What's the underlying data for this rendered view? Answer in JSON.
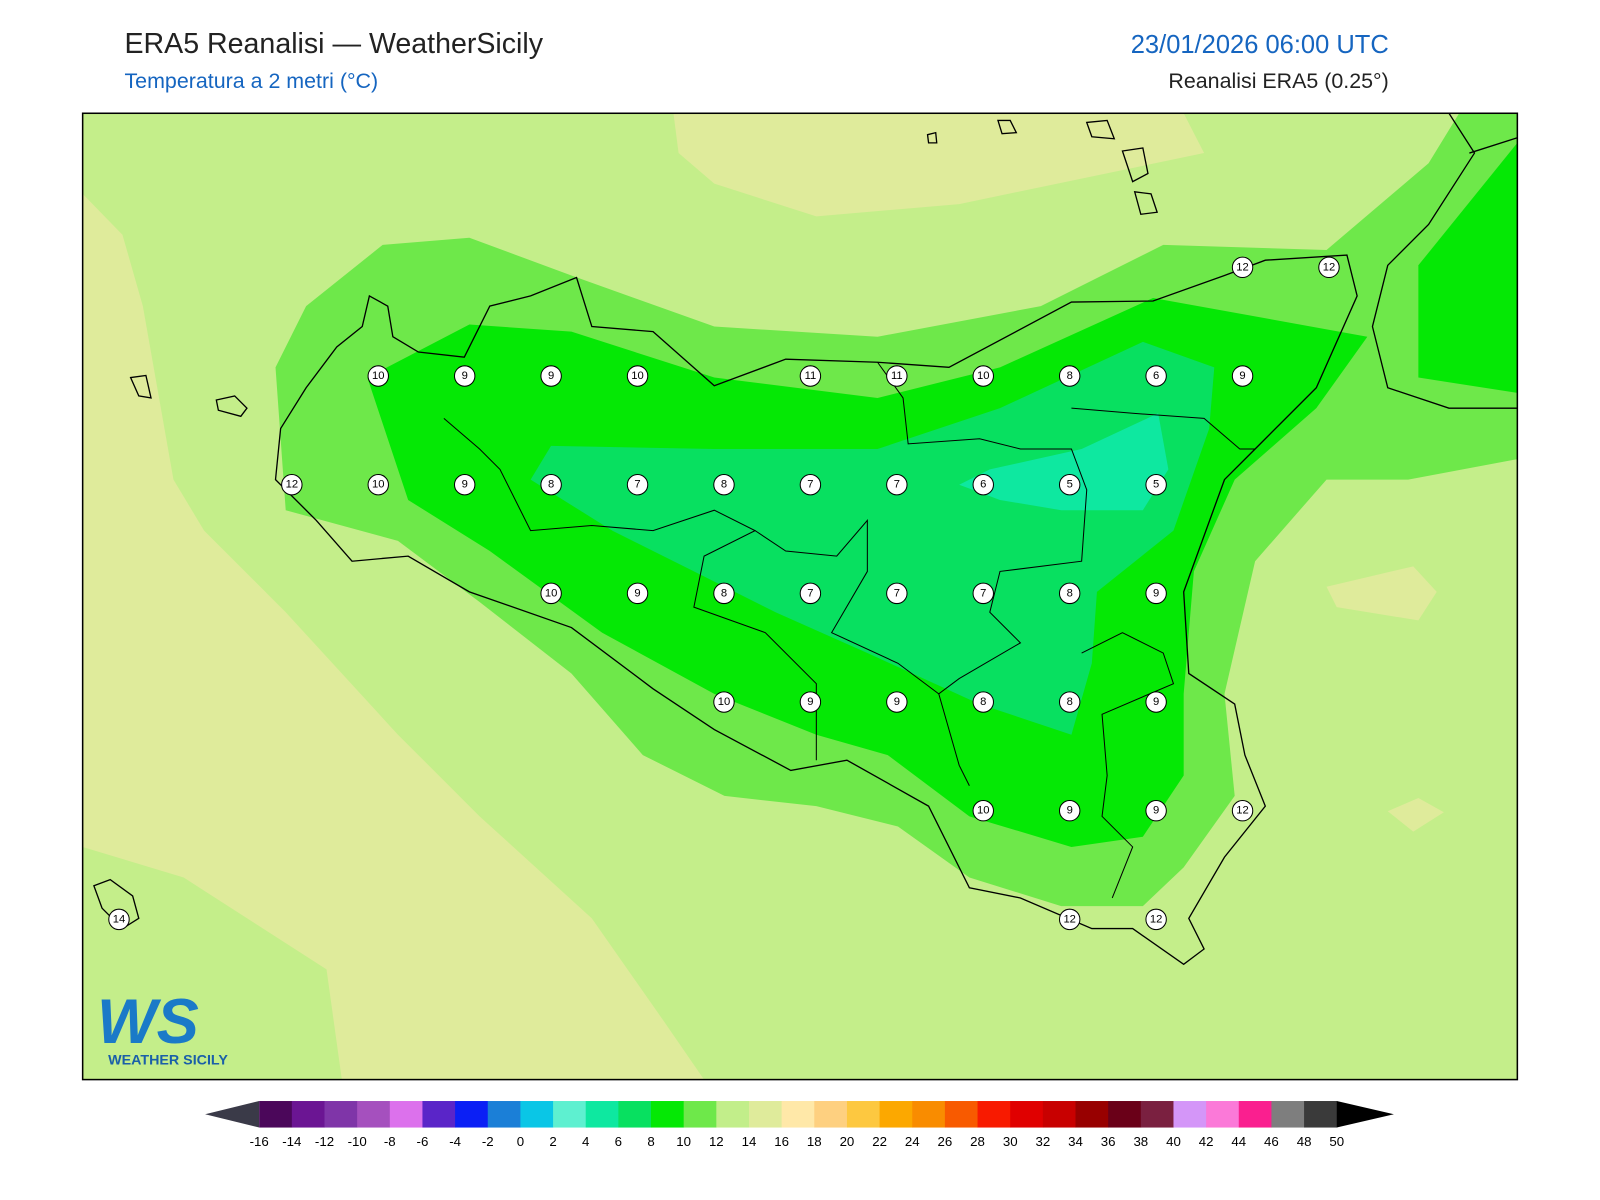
{
  "header": {
    "title": "ERA5 Reanalisi — WeatherSicily",
    "subtitle": "Temperatura a 2 metri (°C)",
    "datetime": "23/01/2026 06:00 UTC",
    "source": "Reanalisi ERA5 (0.25°)"
  },
  "map": {
    "stations": [
      12,
      12,
      10,
      9,
      9,
      10,
      11,
      11,
      10,
      8,
      6,
      9,
      12,
      10,
      9,
      8,
      7,
      8,
      7,
      7,
      6,
      5,
      5,
      10,
      9,
      8,
      7,
      7,
      7,
      8,
      9,
      10,
      9,
      9,
      8,
      8,
      9,
      10,
      9,
      9,
      12,
      14,
      12,
      12
    ]
  },
  "logo": {
    "mark": "WS",
    "name": "WEATHER SICILY"
  },
  "colorbar": {
    "ticks": [
      -16,
      -14,
      -12,
      -10,
      -8,
      -6,
      -4,
      -2,
      0,
      2,
      4,
      6,
      8,
      10,
      12,
      14,
      16,
      18,
      20,
      22,
      24,
      26,
      28,
      30,
      32,
      34,
      36,
      38,
      40,
      42,
      44,
      46,
      48,
      50
    ],
    "colors": [
      "#4b075a",
      "#6b1593",
      "#7f35a8",
      "#a550be",
      "#dc71ec",
      "#5a25c8",
      "#0b1ff5",
      "#1b7fd7",
      "#0ac6e6",
      "#5ef0d0",
      "#0ee8a0",
      "#08e060",
      "#05e805",
      "#6ee84a",
      "#c2ee8a",
      "#dfeb9b",
      "#ffe8a8",
      "#fed080",
      "#fdc840",
      "#fca800",
      "#f98c00",
      "#f85a00",
      "#f81a00",
      "#e00000",
      "#c80000",
      "#980000",
      "#6a0018",
      "#7a2040",
      "#d496f8",
      "#fb79d8",
      "#fa1f8f",
      "#7e7e7e",
      "#3a3a3a"
    ],
    "under_color": "#3a3a48",
    "over_color": "#000000"
  }
}
